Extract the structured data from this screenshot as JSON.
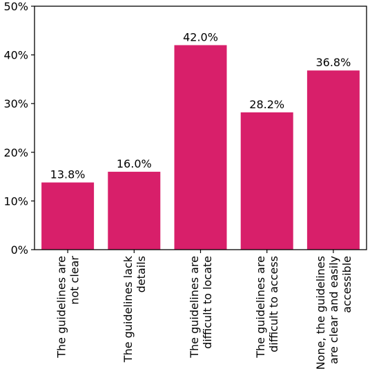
{
  "chart_data": {
    "type": "bar",
    "categories": [
      [
        "The guidelines are",
        "not clear"
      ],
      [
        "The guidelines lack",
        "details"
      ],
      [
        "The guidelines are",
        "difficult to locate"
      ],
      [
        "The guidelines are",
        "difficult to access"
      ],
      [
        "None, the guidelines",
        "are clear and easily",
        "accessible"
      ]
    ],
    "values": [
      13.8,
      16.0,
      42.0,
      28.2,
      36.8
    ],
    "value_labels": [
      "13.8%",
      "16.0%",
      "42.0%",
      "28.2%",
      "36.8%"
    ],
    "title": "",
    "xlabel": "",
    "ylabel": "",
    "ylim": [
      0,
      50
    ],
    "yticks": [
      0,
      10,
      20,
      30,
      40,
      50
    ],
    "ytick_labels": [
      "0%",
      "10%",
      "20%",
      "30%",
      "40%",
      "50%"
    ],
    "bar_color": "#D81F6A",
    "grid": false,
    "legend": "none"
  }
}
